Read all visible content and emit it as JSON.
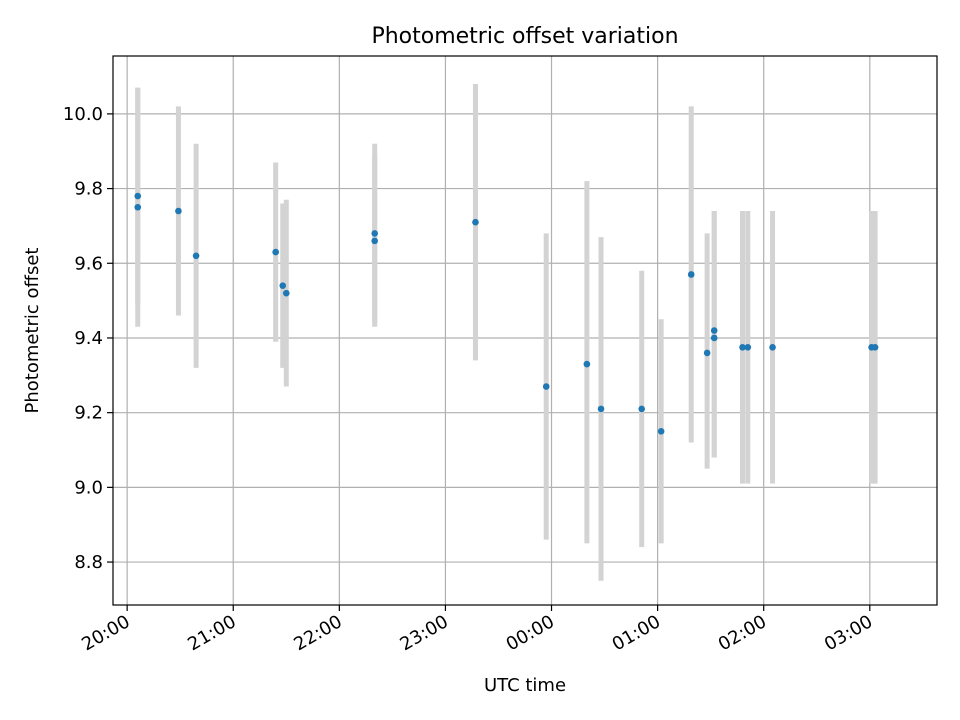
{
  "chart_data": {
    "type": "scatter",
    "title": "Photometric offset variation",
    "xlabel": "UTC time",
    "ylabel": "Photometric offset",
    "x_axis_type": "time",
    "x_range": [
      "19:52",
      "03:38"
    ],
    "ylim": [
      8.685,
      10.155
    ],
    "grid": true,
    "y_ticks": [
      "8.8",
      "9.0",
      "9.2",
      "9.4",
      "9.6",
      "9.8",
      "10.0"
    ],
    "x_ticks": [
      "20:00",
      "21:00",
      "22:00",
      "23:00",
      "00:00",
      "01:00",
      "02:00",
      "03:00"
    ],
    "colors": {
      "point": "#1f77b4",
      "errorbar": "#d3d3d3",
      "grid": "#b0b0b0"
    },
    "series": [
      {
        "points": [
          {
            "t": "20:06",
            "y": 9.78,
            "ylo": 9.49,
            "yhi": 10.07
          },
          {
            "t": "20:06",
            "y": 9.75,
            "ylo": 9.43,
            "yhi": 10.07
          },
          {
            "t": "20:29",
            "y": 9.74,
            "ylo": 9.46,
            "yhi": 10.02
          },
          {
            "t": "20:39",
            "y": 9.62,
            "ylo": 9.32,
            "yhi": 9.92
          },
          {
            "t": "21:24",
            "y": 9.63,
            "ylo": 9.39,
            "yhi": 9.87
          },
          {
            "t": "21:28",
            "y": 9.54,
            "ylo": 9.32,
            "yhi": 9.76
          },
          {
            "t": "21:30",
            "y": 9.52,
            "ylo": 9.27,
            "yhi": 9.77
          },
          {
            "t": "22:20",
            "y": 9.68,
            "ylo": 9.44,
            "yhi": 9.92
          },
          {
            "t": "22:20",
            "y": 9.66,
            "ylo": 9.43,
            "yhi": 9.89
          },
          {
            "t": "23:17",
            "y": 9.71,
            "ylo": 9.34,
            "yhi": 10.08
          },
          {
            "t": "23:57",
            "y": 9.27,
            "ylo": 8.86,
            "yhi": 9.68
          },
          {
            "t": "00:20",
            "y": 9.33,
            "ylo": 8.85,
            "yhi": 9.82
          },
          {
            "t": "00:28",
            "y": 9.21,
            "ylo": 8.75,
            "yhi": 9.67
          },
          {
            "t": "00:51",
            "y": 9.21,
            "ylo": 8.84,
            "yhi": 9.58
          },
          {
            "t": "01:02",
            "y": 9.15,
            "ylo": 8.85,
            "yhi": 9.45
          },
          {
            "t": "01:19",
            "y": 9.57,
            "ylo": 9.12,
            "yhi": 10.02
          },
          {
            "t": "01:28",
            "y": 9.36,
            "ylo": 9.05,
            "yhi": 9.68
          },
          {
            "t": "01:32",
            "y": 9.42,
            "ylo": 9.08,
            "yhi": 9.74
          },
          {
            "t": "01:32",
            "y": 9.4,
            "ylo": 9.08,
            "yhi": 9.74
          },
          {
            "t": "01:48",
            "y": 9.375,
            "ylo": 9.01,
            "yhi": 9.74
          },
          {
            "t": "01:51",
            "y": 9.375,
            "ylo": 9.01,
            "yhi": 9.74
          },
          {
            "t": "02:05",
            "y": 9.375,
            "ylo": 9.01,
            "yhi": 9.74
          },
          {
            "t": "03:01",
            "y": 9.375,
            "ylo": 9.01,
            "yhi": 9.74
          },
          {
            "t": "03:03",
            "y": 9.375,
            "ylo": 9.01,
            "yhi": 9.74
          }
        ]
      }
    ]
  }
}
